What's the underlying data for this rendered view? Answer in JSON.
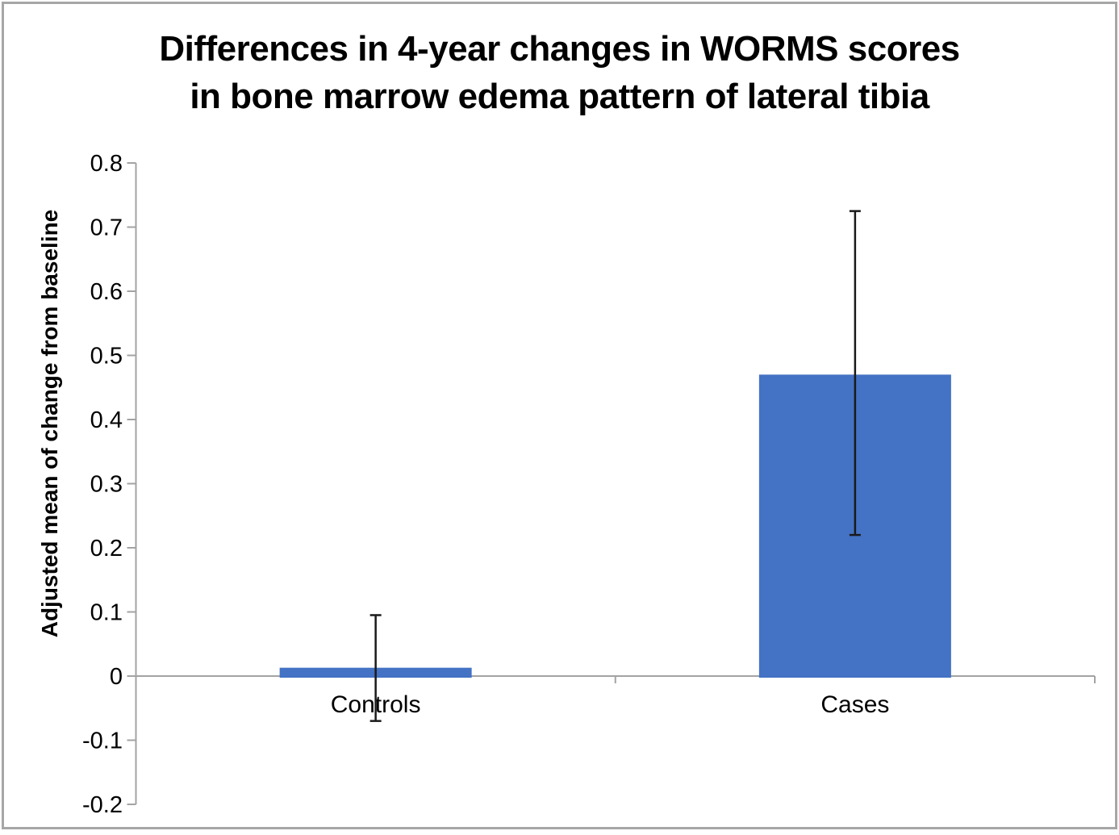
{
  "chart_data": {
    "type": "bar",
    "title": "Differences in 4-year changes in WORMS scores in bone marrow edema pattern of lateral tibia",
    "title_lines": [
      "Differences in 4-year changes in WORMS scores",
      "in bone marrow edema pattern of lateral tibia"
    ],
    "ylabel": "Adjusted mean of change from baseline",
    "xlabel": "",
    "categories": [
      "Controls",
      "Cases"
    ],
    "values": [
      0.013,
      0.47
    ],
    "error_bars": [
      {
        "low": -0.07,
        "high": 0.095
      },
      {
        "low": 0.22,
        "high": 0.725
      }
    ],
    "ylim": [
      -0.2,
      0.8
    ],
    "ytick_step": 0.1,
    "ytick_labels": [
      "0.8",
      "0.7",
      "0.6",
      "0.5",
      "0.4",
      "0.3",
      "0.2",
      "0.1",
      "0",
      "-0.1",
      "-0.2"
    ],
    "grid": false,
    "legend_position": "none",
    "bar_color": "#4472C4",
    "axis_color": "#a3a3a3",
    "error_color": "#1a1a1a",
    "text_color": "#000000"
  }
}
